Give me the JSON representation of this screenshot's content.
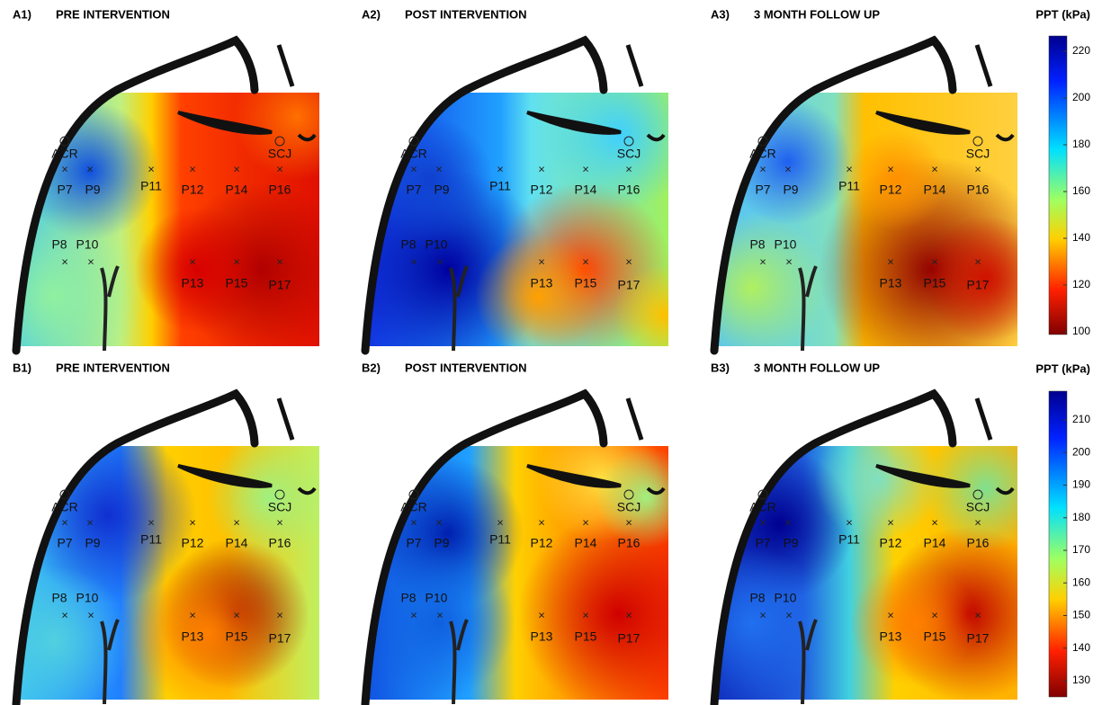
{
  "panels": [
    {
      "id": "A1)",
      "title": "PRE INTERVENTION"
    },
    {
      "id": "A2)",
      "title": "POST INTERVENTION"
    },
    {
      "id": "A3)",
      "title": "3 MONTH FOLLOW UP"
    },
    {
      "id": "B1)",
      "title": "PRE INTERVENTION"
    },
    {
      "id": "B2)",
      "title": "POST INTERVENTION"
    },
    {
      "id": "B3)",
      "title": "3 MONTH FOLLOW UP"
    }
  ],
  "landmarks": [
    "ACR",
    "SCJ"
  ],
  "points": [
    "P7",
    "P9",
    "P11",
    "P12",
    "P14",
    "P16",
    "P8",
    "P10",
    "P13",
    "P15",
    "P17"
  ],
  "colorbars": [
    {
      "title": "PPT (kPa)",
      "ticks": [
        100,
        120,
        140,
        160,
        180,
        200,
        220
      ]
    },
    {
      "title": "PPT (kPa)",
      "ticks": [
        130,
        140,
        150,
        160,
        170,
        180,
        190,
        200,
        210
      ]
    }
  ]
}
